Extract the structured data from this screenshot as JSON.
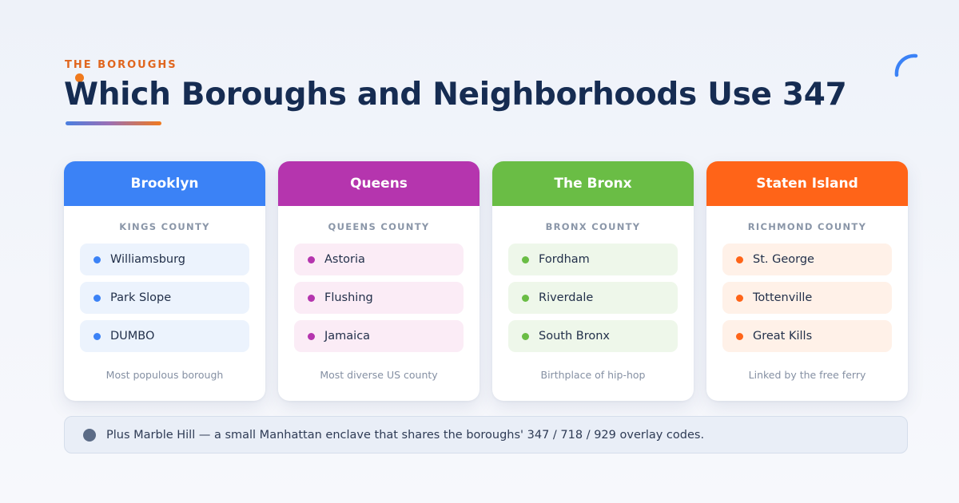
{
  "header": {
    "eyebrow": "THE BOROUGHS",
    "title": "Which Boroughs and Neighborhoods Use 347"
  },
  "boroughs": [
    {
      "name": "Brooklyn",
      "county": "KINGS COUNTY",
      "color": "#3b82f6",
      "tint": "#ecf3fd",
      "neighborhoods": [
        "Williamsburg",
        "Park Slope",
        "DUMBO"
      ],
      "note": "Most populous borough"
    },
    {
      "name": "Queens",
      "county": "QUEENS COUNTY",
      "color": "#b535ae",
      "tint": "#fbecf6",
      "neighborhoods": [
        "Astoria",
        "Flushing",
        "Jamaica"
      ],
      "note": "Most diverse US county"
    },
    {
      "name": "The Bronx",
      "county": "BRONX COUNTY",
      "color": "#6abd45",
      "tint": "#eef7ea",
      "neighborhoods": [
        "Fordham",
        "Riverdale",
        "South Bronx"
      ],
      "note": "Birthplace of hip-hop"
    },
    {
      "name": "Staten Island",
      "county": "RICHMOND COUNTY",
      "color": "#ff6418",
      "tint": "#fff1e8",
      "neighborhoods": [
        "St. George",
        "Tottenville",
        "Great Kills"
      ],
      "note": "Linked by the free ferry"
    }
  ],
  "footer": {
    "text": "Plus Marble Hill — a small Manhattan enclave that shares the boroughs' 347 / 718 / 929 overlay codes."
  },
  "colors": {
    "accent_orange": "#f07a1e",
    "accent_blue": "#3b82f6",
    "title": "#162c52"
  }
}
